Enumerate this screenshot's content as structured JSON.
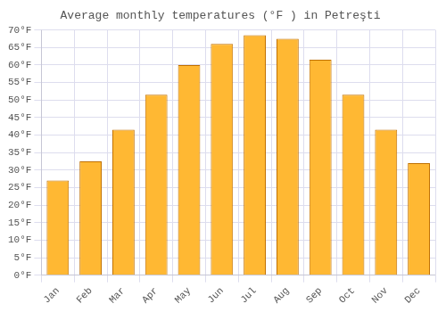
{
  "chart_data": {
    "type": "bar",
    "title": "Average monthly temperatures (°F ) in Petreşti",
    "categories": [
      "Jan",
      "Feb",
      "Mar",
      "Apr",
      "May",
      "Jun",
      "Jul",
      "Aug",
      "Sep",
      "Oct",
      "Nov",
      "Dec"
    ],
    "values": [
      27,
      32.5,
      41.5,
      51.5,
      60,
      66,
      68.5,
      67.5,
      61.5,
      51.5,
      41.5,
      32
    ],
    "color": "#FFB833",
    "ylim": [
      0,
      70
    ],
    "yticks": [
      {
        "value": 0,
        "label": "0°F"
      },
      {
        "value": 5,
        "label": "5°F"
      },
      {
        "value": 10,
        "label": "10°F"
      },
      {
        "value": 15,
        "label": "15°F"
      },
      {
        "value": 20,
        "label": "20°F"
      },
      {
        "value": 25,
        "label": "25°F"
      },
      {
        "value": 30,
        "label": "30°F"
      },
      {
        "value": 35,
        "label": "35°F"
      },
      {
        "value": 40,
        "label": "40°F"
      },
      {
        "value": 45,
        "label": "45°F"
      },
      {
        "value": 50,
        "label": "50°F"
      },
      {
        "value": 55,
        "label": "55°F"
      },
      {
        "value": 60,
        "label": "60°F"
      },
      {
        "value": 65,
        "label": "65°F"
      },
      {
        "value": 70,
        "label": "70°F"
      }
    ],
    "grid": true
  }
}
